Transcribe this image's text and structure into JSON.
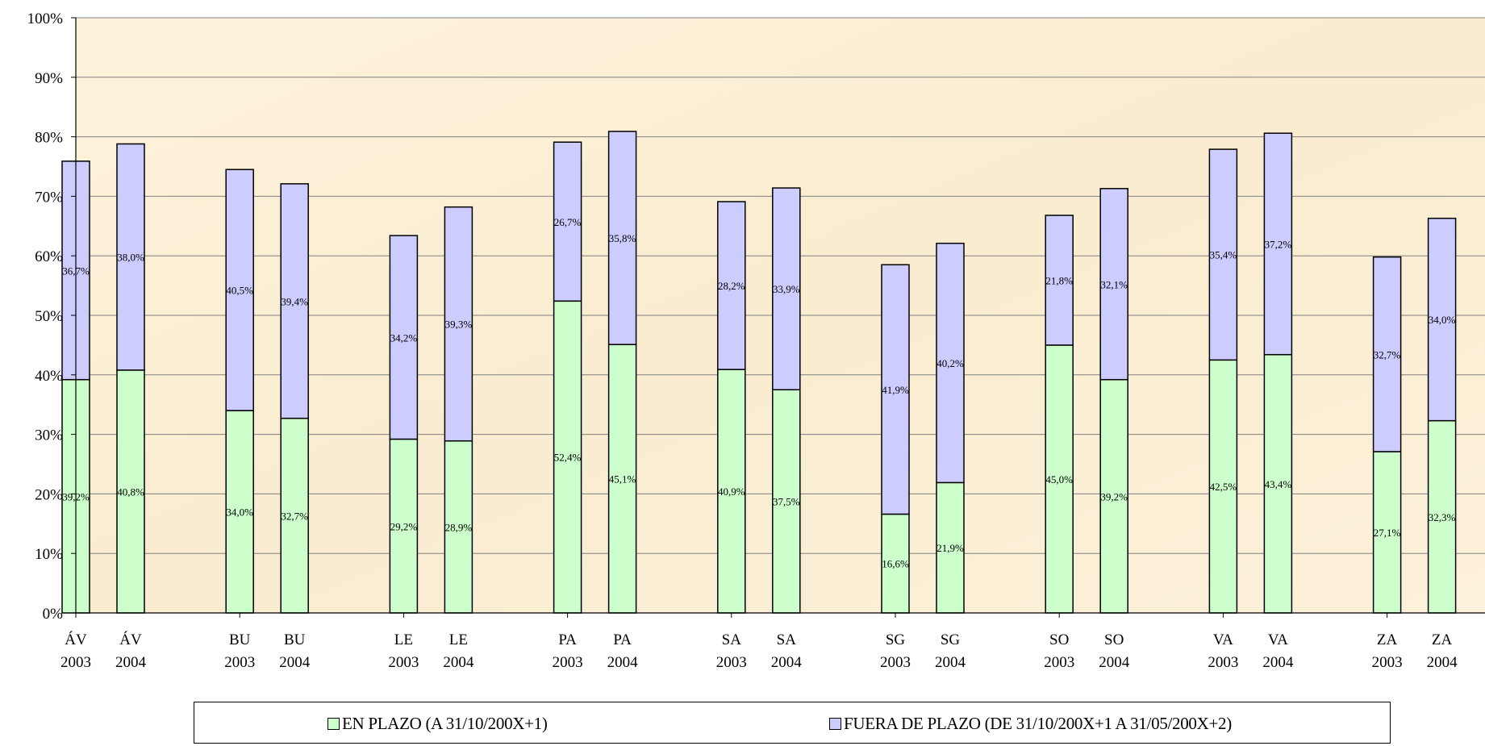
{
  "chart_data": {
    "type": "bar",
    "stacked": true,
    "title": "",
    "xlabel": "",
    "ylabel": "",
    "ylim": [
      0,
      100
    ],
    "y_ticks": [
      "0%",
      "10%",
      "20%",
      "30%",
      "40%",
      "50%",
      "60%",
      "70%",
      "80%",
      "90%",
      "100%"
    ],
    "grid": true,
    "legend_position": "bottom",
    "categories": [
      [
        "ÁV",
        "2003"
      ],
      [
        "ÁV",
        "2004"
      ],
      [
        "BU",
        "2003"
      ],
      [
        "BU",
        "2004"
      ],
      [
        "LE",
        "2003"
      ],
      [
        "LE",
        "2004"
      ],
      [
        "PA",
        "2003"
      ],
      [
        "PA",
        "2004"
      ],
      [
        "SA",
        "2003"
      ],
      [
        "SA",
        "2004"
      ],
      [
        "SG",
        "2003"
      ],
      [
        "SG",
        "2004"
      ],
      [
        "SO",
        "2003"
      ],
      [
        "SO",
        "2004"
      ],
      [
        "VA",
        "2003"
      ],
      [
        "VA",
        "2004"
      ],
      [
        "ZA",
        "2003"
      ],
      [
        "ZA",
        "2004"
      ]
    ],
    "series": [
      {
        "name": "EN PLAZO (A 31/10/200X+1)",
        "color": "#ccffcc",
        "values": [
          39.2,
          40.8,
          34.0,
          32.7,
          29.2,
          28.9,
          52.4,
          45.1,
          40.9,
          37.5,
          16.6,
          21.9,
          45.0,
          39.2,
          42.5,
          43.4,
          27.1,
          32.3
        ],
        "labels": [
          "39,2%",
          "40,8%",
          "34,0%",
          "32,7%",
          "29,2%",
          "28,9%",
          "52,4%",
          "45,1%",
          "40,9%",
          "37,5%",
          "16,6%",
          "21,9%",
          "45,0%",
          "39,2%",
          "42,5%",
          "43,4%",
          "27,1%",
          "32,3%"
        ]
      },
      {
        "name": "FUERA DE PLAZO (DE 31/10/200X+1 A 31/05/200X+2)",
        "color": "#ccccff",
        "values": [
          36.7,
          38.0,
          40.5,
          39.4,
          34.2,
          39.3,
          26.7,
          35.8,
          28.2,
          33.9,
          41.9,
          40.2,
          21.8,
          32.1,
          35.4,
          37.2,
          32.7,
          34.0
        ],
        "labels": [
          "36,7%",
          "38,0%",
          "40,5%",
          "39,4%",
          "34,2%",
          "39,3%",
          "26,7%",
          "35,8%",
          "28,2%",
          "33,9%",
          "41,9%",
          "40,2%",
          "21,8%",
          "32,1%",
          "35,4%",
          "37,2%",
          "32,7%",
          "34,0%"
        ]
      }
    ],
    "colors": {
      "plot_background": "#fbefd6",
      "gridline": "#808080",
      "axis": "#000000"
    }
  }
}
